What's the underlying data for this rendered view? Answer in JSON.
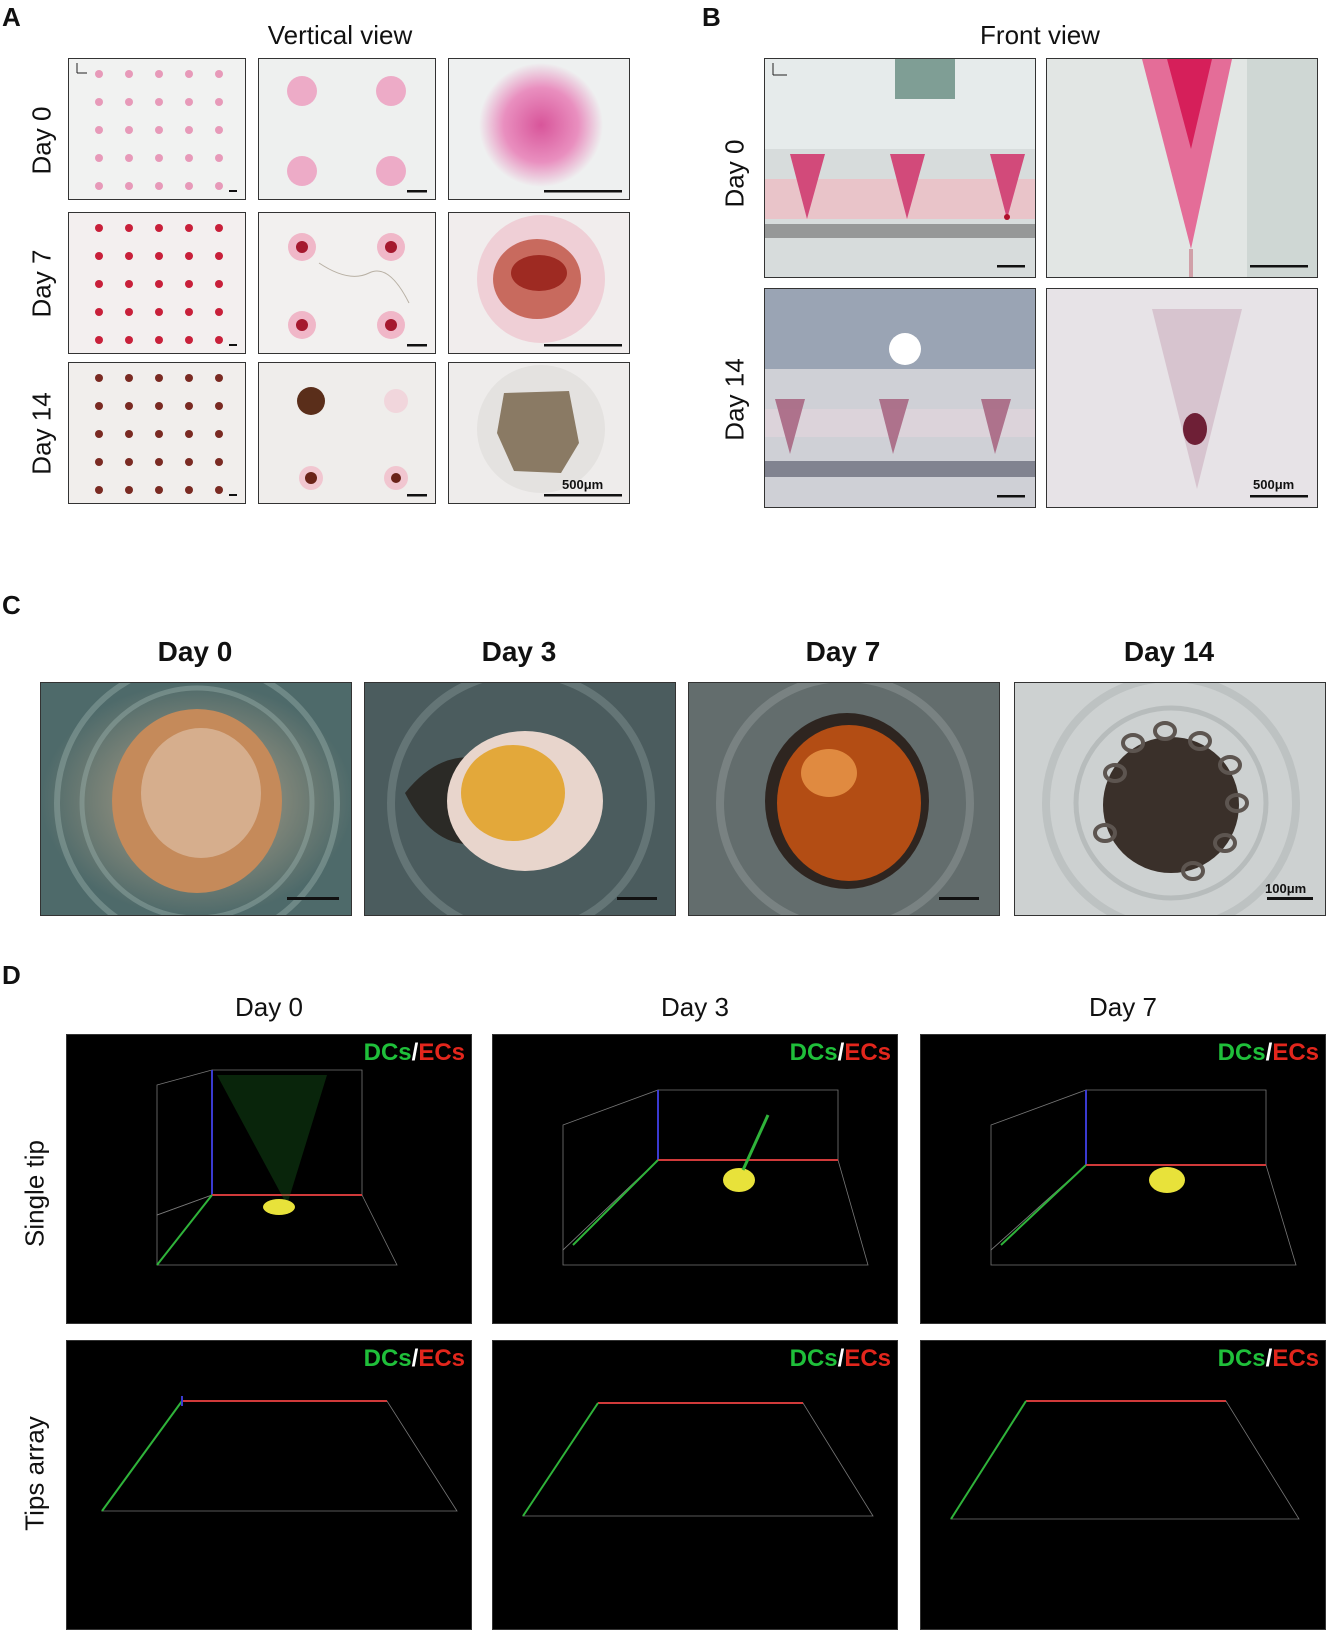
{
  "panels": {
    "A": {
      "letter": "A",
      "title": "Vertical view",
      "rows": [
        "Day 0",
        "Day 7",
        "Day 14"
      ],
      "scale_label": "500μm"
    },
    "B": {
      "letter": "B",
      "title": "Front view",
      "rows": [
        "Day 0",
        "Day 14"
      ],
      "scale_label": "500μm"
    },
    "C": {
      "letter": "C",
      "columns": [
        "Day 0",
        "Day 3",
        "Day 7",
        "Day 14"
      ],
      "scale_label": "100μm"
    },
    "D": {
      "letter": "D",
      "columns": [
        "Day 0",
        "Day 3",
        "Day 7"
      ],
      "rows": [
        "Single tip",
        "Tips array"
      ],
      "legend_dc": "DCs",
      "legend_sep": "/",
      "legend_ec": "ECs"
    }
  },
  "colors": {
    "dc_green": "#1fbf3a",
    "ec_red": "#e2261c"
  }
}
